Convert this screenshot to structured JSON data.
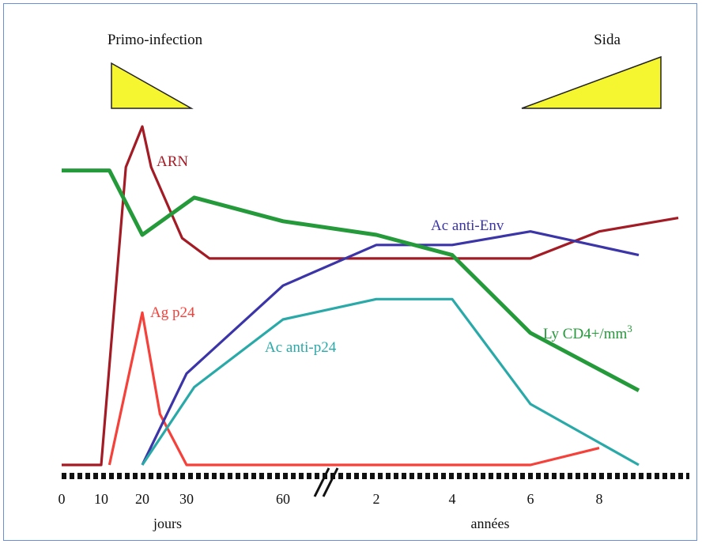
{
  "chart_data": {
    "type": "line",
    "phases": [
      {
        "label": "Primo-infection",
        "shape": "decreasing"
      },
      {
        "label": "Sida",
        "shape": "increasing"
      }
    ],
    "x_axis": {
      "segments": [
        {
          "unit_label": "jours",
          "ticks": [
            "0",
            "10",
            "20",
            "30",
            "60"
          ]
        },
        {
          "unit_label": "années",
          "ticks": [
            "2",
            "4",
            "6",
            "8"
          ]
        }
      ],
      "break": true
    },
    "series": [
      {
        "name": "ARN",
        "color": "#a31b25",
        "points": [
          [
            "0",
            0.0
          ],
          [
            "10",
            0.0
          ],
          [
            "16",
            0.88
          ],
          [
            "20",
            1.0
          ],
          [
            "22",
            0.88
          ],
          [
            "29",
            0.67
          ],
          [
            "36",
            0.61
          ],
          [
            "6",
            0.61
          ],
          [
            "8",
            0.69
          ],
          [
            "10",
            0.73
          ]
        ]
      },
      {
        "name": "Ag p24",
        "color": "#f5413a",
        "points": [
          [
            "12",
            0.0
          ],
          [
            "20",
            0.45
          ],
          [
            "24",
            0.15
          ],
          [
            "30",
            0.0
          ],
          [
            "6",
            0.0
          ],
          [
            "8",
            0.05
          ]
        ]
      },
      {
        "name": "Ac anti-Env",
        "color": "#3b35a8",
        "points": [
          [
            "20",
            0.0
          ],
          [
            "30",
            0.27
          ],
          [
            "60",
            0.53
          ],
          [
            "2",
            0.65
          ],
          [
            "4",
            0.65
          ],
          [
            "6",
            0.69
          ],
          [
            "9",
            0.62
          ]
        ]
      },
      {
        "name": "Ac anti-p24",
        "color": "#2aa9a9",
        "points": [
          [
            "20",
            0.0
          ],
          [
            "32",
            0.23
          ],
          [
            "60",
            0.43
          ],
          [
            "2",
            0.49
          ],
          [
            "4",
            0.49
          ],
          [
            "6",
            0.18
          ],
          [
            "9",
            0.0
          ]
        ]
      },
      {
        "name": "Ly CD4+/mm",
        "name_superscript": "3",
        "color": "#249a3a",
        "points": [
          [
            "0",
            0.87
          ],
          [
            "12",
            0.87
          ],
          [
            "20",
            0.68
          ],
          [
            "32",
            0.79
          ],
          [
            "60",
            0.72
          ],
          [
            "2",
            0.68
          ],
          [
            "4",
            0.62
          ],
          [
            "6",
            0.39
          ],
          [
            "9",
            0.22
          ]
        ]
      }
    ],
    "grid": false,
    "legend": "inline labels"
  }
}
